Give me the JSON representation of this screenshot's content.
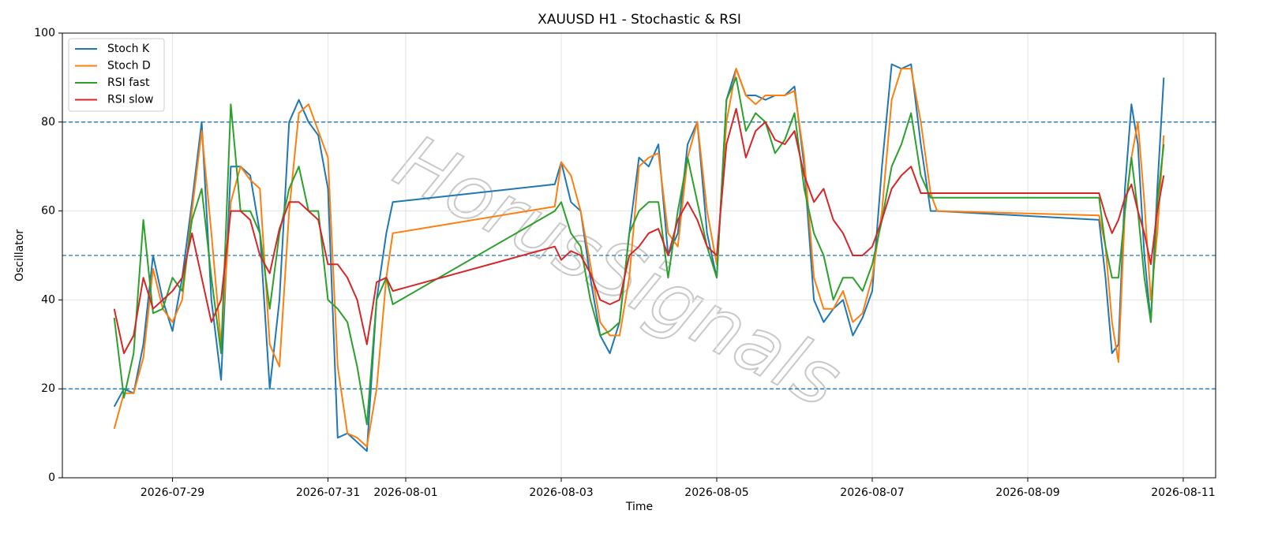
{
  "chart_data": {
    "type": "line",
    "title": "XAUUSD H1 - Stochastic & RSI",
    "xlabel": "Time",
    "ylabel": "Oscillator",
    "watermark": "HorusSignals",
    "x": [
      "2026-07-28T06:00",
      "2026-07-28T09:00",
      "2026-07-28T12:00",
      "2026-07-28T15:00",
      "2026-07-28T18:00",
      "2026-07-28T21:00",
      "2026-07-29T00:00",
      "2026-07-29T03:00",
      "2026-07-29T06:00",
      "2026-07-29T09:00",
      "2026-07-29T12:00",
      "2026-07-29T15:00",
      "2026-07-29T18:00",
      "2026-07-29T21:00",
      "2026-07-30T00:00",
      "2026-07-30T03:00",
      "2026-07-30T06:00",
      "2026-07-30T09:00",
      "2026-07-30T12:00",
      "2026-07-30T15:00",
      "2026-07-30T18:00",
      "2026-07-30T21:00",
      "2026-07-31T00:00",
      "2026-07-31T03:00",
      "2026-07-31T06:00",
      "2026-07-31T09:00",
      "2026-07-31T12:00",
      "2026-07-31T15:00",
      "2026-07-31T18:00",
      "2026-07-31T20:00",
      "2026-08-02T22:00",
      "2026-08-03T00:00",
      "2026-08-03T03:00",
      "2026-08-03T06:00",
      "2026-08-03T09:00",
      "2026-08-03T12:00",
      "2026-08-03T15:00",
      "2026-08-03T18:00",
      "2026-08-03T21:00",
      "2026-08-04T00:00",
      "2026-08-04T03:00",
      "2026-08-04T06:00",
      "2026-08-04T09:00",
      "2026-08-04T12:00",
      "2026-08-04T15:00",
      "2026-08-04T18:00",
      "2026-08-04T21:00",
      "2026-08-05T00:00",
      "2026-08-05T03:00",
      "2026-08-05T06:00",
      "2026-08-05T09:00",
      "2026-08-05T12:00",
      "2026-08-05T15:00",
      "2026-08-05T18:00",
      "2026-08-05T21:00",
      "2026-08-06T00:00",
      "2026-08-06T03:00",
      "2026-08-06T06:00",
      "2026-08-06T09:00",
      "2026-08-06T12:00",
      "2026-08-06T15:00",
      "2026-08-06T18:00",
      "2026-08-06T21:00",
      "2026-08-07T00:00",
      "2026-08-07T03:00",
      "2026-08-07T06:00",
      "2026-08-07T09:00",
      "2026-08-07T12:00",
      "2026-08-07T15:00",
      "2026-08-07T18:00",
      "2026-08-07T20:00",
      "2026-08-09T22:00",
      "2026-08-10T00:00",
      "2026-08-10T02:00",
      "2026-08-10T04:00",
      "2026-08-10T06:00",
      "2026-08-10T08:00",
      "2026-08-10T10:00",
      "2026-08-10T12:00",
      "2026-08-10T14:00",
      "2026-08-10T16:00",
      "2026-08-10T18:00"
    ],
    "series": [
      {
        "name": "Stoch K",
        "color": "#1f77b4",
        "values": [
          16,
          20,
          19,
          30,
          50,
          40,
          33,
          45,
          62,
          80,
          40,
          22,
          70,
          70,
          68,
          55,
          20,
          40,
          80,
          85,
          80,
          77,
          65,
          9,
          10,
          8,
          6,
          40,
          55,
          62,
          66,
          71,
          62,
          60,
          45,
          32,
          28,
          35,
          55,
          72,
          70,
          75,
          50,
          55,
          75,
          80,
          55,
          45,
          85,
          92,
          86,
          86,
          85,
          86,
          86,
          88,
          70,
          40,
          35,
          38,
          40,
          32,
          36,
          42,
          70,
          93,
          92,
          93,
          75,
          60,
          60,
          58,
          45,
          28,
          30,
          65,
          84,
          75,
          50,
          35,
          65,
          90
        ]
      },
      {
        "name": "Stoch D",
        "color": "#ff7f0e",
        "values": [
          11,
          19,
          19,
          27,
          47,
          38,
          35,
          40,
          60,
          78,
          55,
          30,
          62,
          70,
          67,
          65,
          30,
          25,
          60,
          82,
          84,
          78,
          72,
          25,
          10,
          9,
          7,
          20,
          45,
          55,
          61,
          71,
          68,
          60,
          48,
          35,
          32,
          32,
          45,
          70,
          72,
          73,
          55,
          52,
          72,
          80,
          60,
          48,
          80,
          92,
          86,
          84,
          86,
          86,
          86,
          87,
          72,
          45,
          38,
          38,
          42,
          35,
          37,
          45,
          60,
          85,
          92,
          92,
          80,
          64,
          60,
          59,
          52,
          35,
          26,
          60,
          72,
          80,
          62,
          40,
          55,
          77
        ]
      },
      {
        "name": "RSI fast",
        "color": "#2ca02c",
        "values": [
          36,
          18,
          28,
          58,
          37,
          38,
          45,
          42,
          58,
          65,
          45,
          28,
          84,
          60,
          60,
          55,
          38,
          55,
          65,
          70,
          60,
          60,
          40,
          38,
          35,
          25,
          12,
          40,
          45,
          39,
          60,
          62,
          55,
          52,
          40,
          32,
          33,
          35,
          55,
          60,
          62,
          62,
          45,
          60,
          72,
          62,
          52,
          45,
          85,
          90,
          78,
          82,
          80,
          73,
          76,
          82,
          65,
          55,
          50,
          40,
          45,
          45,
          42,
          48,
          58,
          70,
          75,
          82,
          68,
          63,
          63,
          63,
          52,
          45,
          45,
          60,
          72,
          60,
          45,
          35,
          62,
          75
        ]
      },
      {
        "name": "RSI slow",
        "color": "#d62728",
        "values": [
          38,
          28,
          32,
          45,
          38,
          40,
          42,
          45,
          55,
          45,
          35,
          40,
          60,
          60,
          58,
          50,
          46,
          56,
          62,
          62,
          60,
          58,
          48,
          48,
          45,
          40,
          30,
          44,
          45,
          42,
          52,
          49,
          51,
          50,
          46,
          40,
          39,
          40,
          50,
          52,
          55,
          56,
          50,
          58,
          62,
          58,
          52,
          50,
          75,
          83,
          72,
          78,
          80,
          76,
          75,
          78,
          68,
          62,
          65,
          58,
          55,
          50,
          50,
          52,
          58,
          65,
          68,
          70,
          64,
          64,
          64,
          64,
          59,
          55,
          58,
          63,
          66,
          60,
          55,
          48,
          60,
          68
        ]
      }
    ],
    "xlim": [
      "2026-07-27T14:00",
      "2026-08-11T10:00"
    ],
    "xticks": [
      "2026-07-29",
      "2026-07-31",
      "2026-08-01",
      "2026-08-03",
      "2026-08-05",
      "2026-08-07",
      "2026-08-09",
      "2026-08-11"
    ],
    "ylim": [
      0,
      100
    ],
    "yticks": [
      0,
      20,
      40,
      60,
      80,
      100
    ],
    "hlines": [
      20,
      50,
      80
    ],
    "hline_color": "#1f77b4",
    "grid": true,
    "legend": "upper left"
  }
}
